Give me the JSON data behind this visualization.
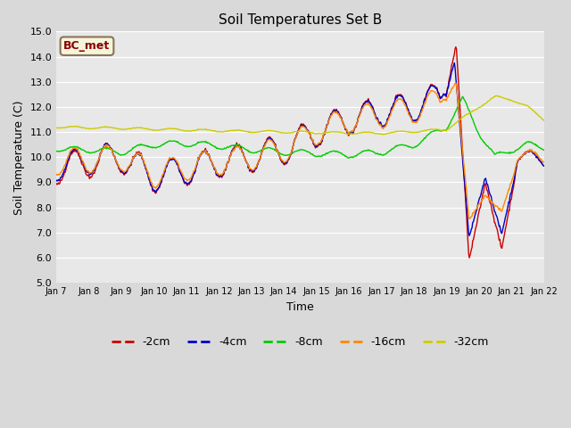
{
  "title": "Soil Temperatures Set B",
  "xlabel": "Time",
  "ylabel": "Soil Temperature (C)",
  "ylim": [
    5.0,
    15.0
  ],
  "yticks": [
    5.0,
    6.0,
    7.0,
    8.0,
    9.0,
    10.0,
    11.0,
    12.0,
    13.0,
    14.0,
    15.0
  ],
  "xtick_labels": [
    "Jan 7",
    "Jan 8",
    "Jan 9",
    "Jan 10",
    "Jan 11",
    "Jan 12",
    "Jan 13",
    "Jan 14",
    "Jan 15",
    "Jan 16",
    "Jan 17",
    "Jan 18",
    "Jan 19",
    "Jan 20",
    "Jan 21",
    "Jan 22"
  ],
  "series_colors": [
    "#cc0000",
    "#0000cc",
    "#00cc00",
    "#ff8800",
    "#cccc00"
  ],
  "series_labels": [
    "-2cm",
    "-4cm",
    "-8cm",
    "-16cm",
    "-32cm"
  ],
  "annotation_text": "BC_met",
  "annotation_fg": "#8B0000",
  "annotation_bg": "#f5f5dc",
  "annotation_edge": "#8B7355",
  "background_color": "#d9d9d9",
  "plot_bg_color": "#e8e8e8",
  "n_points": 720,
  "time_days": 15
}
